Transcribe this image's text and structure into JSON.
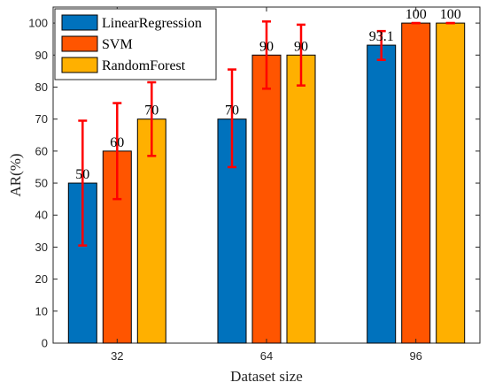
{
  "chart_data": {
    "type": "bar",
    "xlabel": "Dataset size",
    "ylabel": "AR(%)",
    "ylim": [
      0,
      105
    ],
    "yticks": [
      0,
      10,
      20,
      30,
      40,
      50,
      60,
      70,
      80,
      90,
      100
    ],
    "categories": [
      "32",
      "64",
      "96"
    ],
    "series": [
      {
        "name": "LinearRegression",
        "color": "#0072BD",
        "values": [
          50,
          70,
          93.1
        ],
        "labels": [
          "50",
          "70",
          "93.1"
        ],
        "error_low": [
          30.5,
          55,
          88.5
        ],
        "error_high": [
          69.5,
          85.5,
          97.5
        ]
      },
      {
        "name": "SVM",
        "color": "#FF5500",
        "values": [
          60,
          90,
          100
        ],
        "labels": [
          "60",
          "90",
          "100"
        ],
        "error_low": [
          45,
          79.5,
          100
        ],
        "error_high": [
          75,
          100.5,
          100
        ]
      },
      {
        "name": "RandomForest",
        "color": "#FFB000",
        "values": [
          70,
          90,
          100
        ],
        "labels": [
          "70",
          "90",
          "100"
        ],
        "error_low": [
          58.5,
          80.5,
          100
        ],
        "error_high": [
          81.5,
          99.5,
          100
        ]
      }
    ],
    "error_bar_color": "#FF0000",
    "legend_position": "top-left",
    "grid": false
  }
}
